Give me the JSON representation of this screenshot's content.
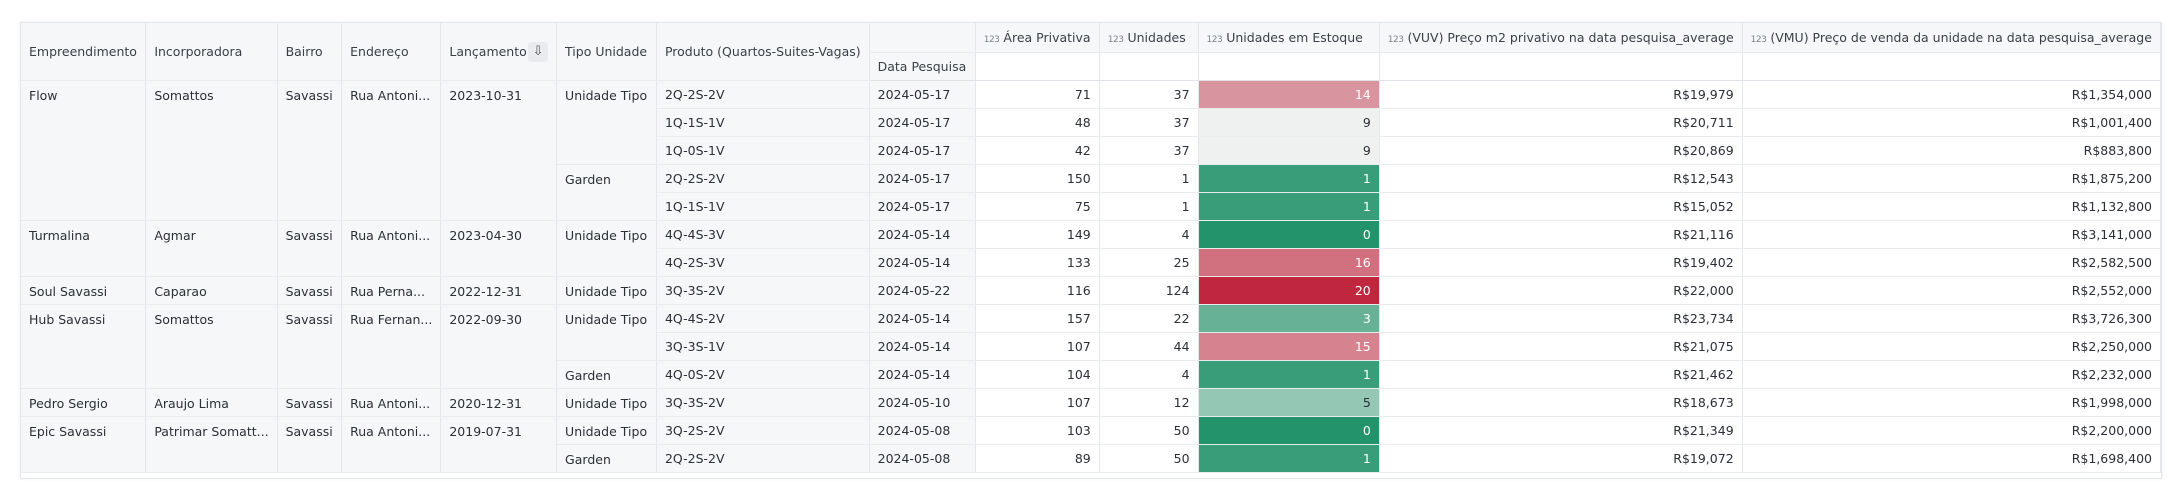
{
  "headers": {
    "empreendimento": "Empreendimento",
    "incorporadora": "Incorporadora",
    "bairro": "Bairro",
    "endereco": "Endereço",
    "lancamento": "Lançamento",
    "tipo_unidade": "Tipo Unidade",
    "produto": "Produto (Quartos-Suites-Vagas)",
    "data_pesquisa": "Data Pesquisa",
    "area": "Área Privativa",
    "unidades": "Unidades",
    "estoque": "Unidades em Estoque",
    "vuv": "(VUV) Preço m2 privativo na data pesquisa_average",
    "vmu": "(VMU) Preço de venda da unidade na data pesquisa_average",
    "type_badge": "123"
  },
  "colors": {
    "heat_green_strong": "#23936b",
    "heat_red_strong": "#c0273f",
    "heat_neutral": "#eef1ef"
  },
  "projects": [
    {
      "name": "Flow",
      "incorporadora": "Somattos",
      "bairro": "Savassi",
      "endereco": "Rua Antoni...",
      "lancamento": "2023-10-31"
    },
    {
      "name": "Turmalina",
      "incorporadora": "Agmar",
      "bairro": "Savassi",
      "endereco": "Rua Antoni...",
      "lancamento": "2023-04-30"
    },
    {
      "name": "Soul Savassi",
      "incorporadora": "Caparao",
      "bairro": "Savassi",
      "endereco": "Rua Perna...",
      "lancamento": "2022-12-31"
    },
    {
      "name": "Hub Savassi",
      "incorporadora": "Somattos",
      "bairro": "Savassi",
      "endereco": "Rua Fernan...",
      "lancamento": "2022-09-30"
    },
    {
      "name": "Pedro Sergio",
      "incorporadora": "Araujo Lima",
      "bairro": "Savassi",
      "endereco": "Rua Antoni...",
      "lancamento": "2020-12-31"
    },
    {
      "name": "Epic Savassi",
      "incorporadora": "Patrimar Somatt...",
      "bairro": "Savassi",
      "endereco": "Rua Antoni...",
      "lancamento": "2019-07-31"
    }
  ],
  "tipos": [
    {
      "label": "Unidade Tipo"
    },
    {
      "label": "Garden"
    },
    {
      "label": "Unidade Tipo"
    },
    {
      "label": "Unidade Tipo"
    },
    {
      "label": "Unidade Tipo"
    },
    {
      "label": "Garden"
    },
    {
      "label": "Unidade Tipo"
    },
    {
      "label": "Unidade Tipo"
    },
    {
      "label": "Garden"
    }
  ],
  "rows": [
    {
      "produto": "2Q-2S-2V",
      "data": "2024-05-17",
      "area": "71",
      "unidades": "37",
      "estoque": "14",
      "vuv": "R$19,979",
      "vmu": "R$1,354,000"
    },
    {
      "produto": "1Q-1S-1V",
      "data": "2024-05-17",
      "area": "48",
      "unidades": "37",
      "estoque": "9",
      "vuv": "R$20,711",
      "vmu": "R$1,001,400"
    },
    {
      "produto": "1Q-0S-1V",
      "data": "2024-05-17",
      "area": "42",
      "unidades": "37",
      "estoque": "9",
      "vuv": "R$20,869",
      "vmu": "R$883,800"
    },
    {
      "produto": "2Q-2S-2V",
      "data": "2024-05-17",
      "area": "150",
      "unidades": "1",
      "estoque": "1",
      "vuv": "R$12,543",
      "vmu": "R$1,875,200"
    },
    {
      "produto": "1Q-1S-1V",
      "data": "2024-05-17",
      "area": "75",
      "unidades": "1",
      "estoque": "1",
      "vuv": "R$15,052",
      "vmu": "R$1,132,800"
    },
    {
      "produto": "4Q-4S-3V",
      "data": "2024-05-14",
      "area": "149",
      "unidades": "4",
      "estoque": "0",
      "vuv": "R$21,116",
      "vmu": "R$3,141,000"
    },
    {
      "produto": "4Q-2S-3V",
      "data": "2024-05-14",
      "area": "133",
      "unidades": "25",
      "estoque": "16",
      "vuv": "R$19,402",
      "vmu": "R$2,582,500"
    },
    {
      "produto": "3Q-3S-2V",
      "data": "2024-05-22",
      "area": "116",
      "unidades": "124",
      "estoque": "20",
      "vuv": "R$22,000",
      "vmu": "R$2,552,000"
    },
    {
      "produto": "4Q-4S-2V",
      "data": "2024-05-14",
      "area": "157",
      "unidades": "22",
      "estoque": "3",
      "vuv": "R$23,734",
      "vmu": "R$3,726,300"
    },
    {
      "produto": "3Q-3S-1V",
      "data": "2024-05-14",
      "area": "107",
      "unidades": "44",
      "estoque": "15",
      "vuv": "R$21,075",
      "vmu": "R$2,250,000"
    },
    {
      "produto": "4Q-0S-2V",
      "data": "2024-05-14",
      "area": "104",
      "unidades": "4",
      "estoque": "1",
      "vuv": "R$21,462",
      "vmu": "R$2,232,000"
    },
    {
      "produto": "3Q-3S-2V",
      "data": "2024-05-10",
      "area": "107",
      "unidades": "12",
      "estoque": "5",
      "vuv": "R$18,673",
      "vmu": "R$1,998,000"
    },
    {
      "produto": "3Q-2S-2V",
      "data": "2024-05-08",
      "area": "103",
      "unidades": "50",
      "estoque": "0",
      "vuv": "R$21,349",
      "vmu": "R$2,200,000"
    },
    {
      "produto": "2Q-2S-2V",
      "data": "2024-05-08",
      "area": "89",
      "unidades": "50",
      "estoque": "1",
      "vuv": "R$19,072",
      "vmu": "R$1,698,400"
    }
  ]
}
